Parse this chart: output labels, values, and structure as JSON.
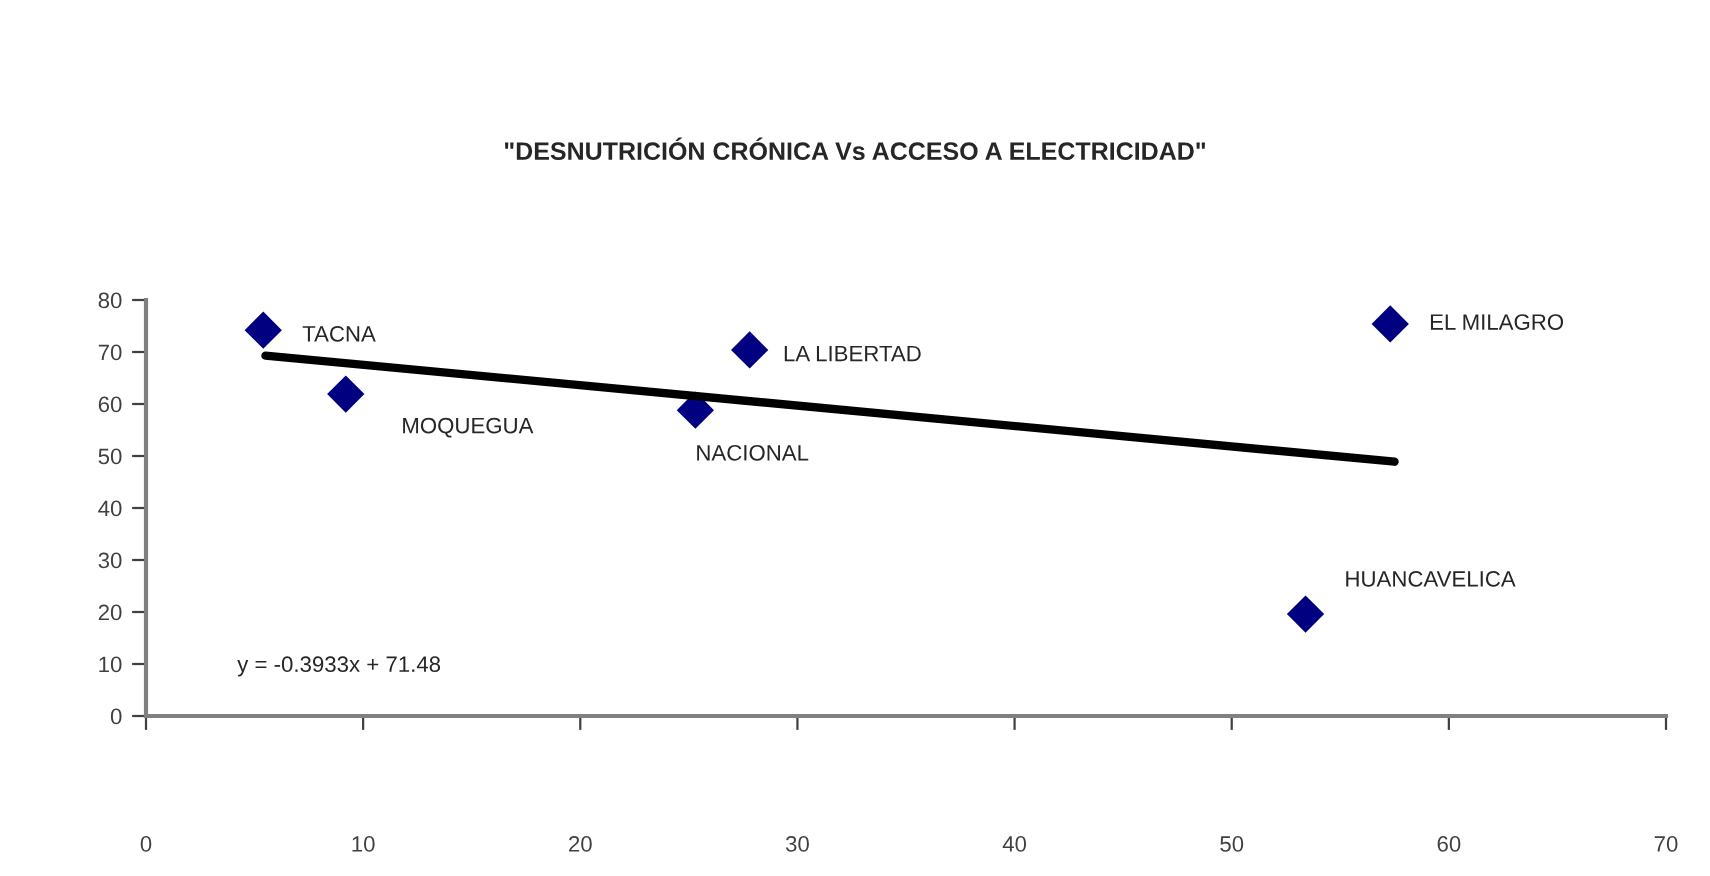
{
  "chart_data": {
    "type": "scatter",
    "title": "\"DESNUTRICIÓN CRÓNICA Vs ACCESO A ELECTRICIDAD\"",
    "series": [
      {
        "color": "#000080",
        "marker": "diamond",
        "x": [
          5.4,
          9.2,
          25.3,
          27.8,
          57.3,
          53.4
        ],
        "values": [
          74.2,
          61.9,
          58.8,
          70.4,
          75.4,
          19.6
        ]
      },
      {
        "type": "line",
        "color": "#000000",
        "marker": "none",
        "line_style": "solid",
        "x": [
          5.5,
          57.5
        ],
        "values": [
          69.3,
          48.9
        ]
      }
    ],
    "annotations": [
      {
        "text": "TACNA",
        "x": 5.4,
        "y": 74.2
      },
      {
        "text": "MOQUEGUA",
        "x": 9.2,
        "y": 61.9
      },
      {
        "text": "NACIONAL",
        "x": 25.3,
        "y": 58.8
      },
      {
        "text": "LA LIBERTAD",
        "x": 27.8,
        "y": 70.4
      },
      {
        "text": "EL MILAGRO",
        "x": 57.3,
        "y": 75.4
      },
      {
        "text": "HUANCAVELICA",
        "x": 53.4,
        "y": 19.6
      },
      "y = -0.3933x + 71.48"
    ],
    "xlim": [
      0,
      70
    ],
    "xticks": [
      0,
      10,
      20,
      30,
      40,
      50,
      60,
      70
    ],
    "ylim": [
      0,
      80
    ],
    "yticks": [
      0,
      10,
      20,
      30,
      40,
      50,
      60,
      70,
      80
    ],
    "grid": false,
    "legend": false
  }
}
